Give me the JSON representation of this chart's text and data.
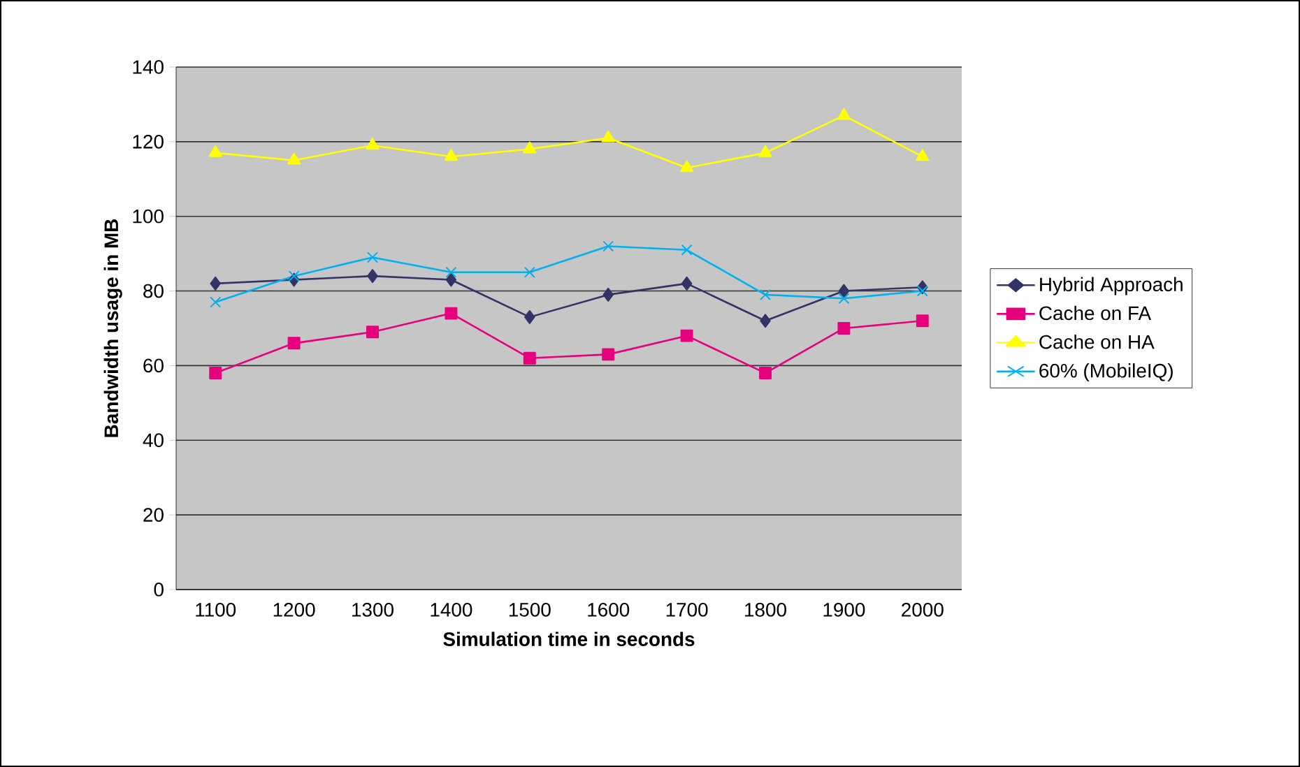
{
  "chart_data": {
    "type": "line",
    "xlabel": "Simulation time in seconds",
    "ylabel": "Bandwidth usage in MB",
    "categories": [
      "1100",
      "1200",
      "1300",
      "1400",
      "1500",
      "1600",
      "1700",
      "1800",
      "1900",
      "2000"
    ],
    "series": [
      {
        "name": "Hybrid Approach",
        "color": "#333366",
        "marker": "diamond",
        "values": [
          82,
          83,
          84,
          83,
          73,
          79,
          82,
          72,
          80,
          81
        ]
      },
      {
        "name": "Cache on FA",
        "color": "#e6007e",
        "marker": "square",
        "values": [
          58,
          66,
          69,
          74,
          62,
          63,
          68,
          58,
          70,
          72
        ]
      },
      {
        "name": "Cache on HA",
        "color": "#ffff00",
        "marker": "triangle",
        "values": [
          117,
          115,
          119,
          116,
          118,
          121,
          113,
          117,
          127,
          116
        ]
      },
      {
        "name": "60% (MobileIQ)",
        "color": "#00b0f0",
        "marker": "cross",
        "values": [
          77,
          84,
          89,
          85,
          85,
          92,
          91,
          79,
          78,
          80
        ]
      }
    ],
    "ylim": [
      0,
      140
    ],
    "yticks": [
      0,
      20,
      40,
      60,
      80,
      100,
      120,
      140
    ],
    "grid": "y",
    "legend": "right"
  }
}
